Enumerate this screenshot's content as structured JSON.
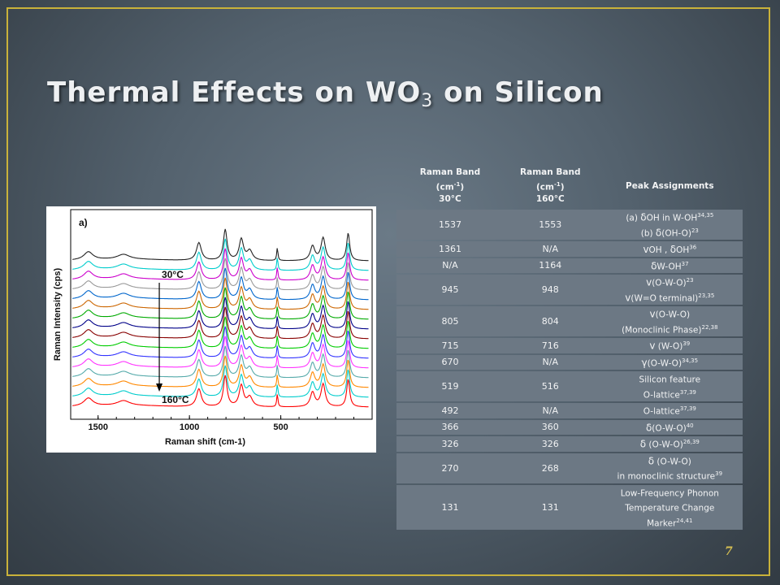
{
  "slide": {
    "title_main": "Thermal Effects on WO",
    "title_sub": "3",
    "title_tail": " on Silicon",
    "page_number": "7"
  },
  "table": {
    "headers": {
      "band_label": "Raman Band",
      "unit": "(cm",
      "unit_exp": "-1",
      "unit_close": ")",
      "col1_temp": "30°C",
      "col2_temp": "160°C",
      "col3": "Peak Assignments"
    },
    "rows": [
      {
        "c30": "1537",
        "c160": "1553",
        "lines": [
          [
            "(a) ",
            "δ",
            "OH in W-OH",
            "34,35"
          ],
          [
            "(b) ",
            "δ",
            "(OH-O)",
            "23"
          ]
        ]
      },
      {
        "c30": "1361",
        "c160": "N/A",
        "lines": [
          [
            "",
            "v",
            "OH , ",
            ""
          ],
          [
            "",
            "δ",
            "OH",
            "36"
          ]
        ],
        "inline": true
      },
      {
        "c30": "N/A",
        "c160": "1164",
        "lines": [
          [
            "",
            "δ",
            "W-OH",
            "37"
          ]
        ]
      },
      {
        "c30": "945",
        "c160": "948",
        "lines": [
          [
            "",
            "v",
            "(O-W-O)",
            "23"
          ],
          [
            "",
            "v",
            "(W=O terminal)",
            "23,35"
          ]
        ]
      },
      {
        "c30": "805",
        "c160": "804",
        "lines": [
          [
            "",
            "v",
            "(O-W-O)",
            ""
          ],
          [
            "",
            "",
            "(Monoclinic Phase)",
            "22,38"
          ]
        ]
      },
      {
        "c30": "715",
        "c160": "716",
        "lines": [
          [
            "",
            "v",
            " (W-O)",
            "39"
          ]
        ]
      },
      {
        "c30": "670",
        "c160": "N/A",
        "lines": [
          [
            "",
            "γ",
            "(O-W-O)",
            "34,35"
          ]
        ]
      },
      {
        "c30": "519",
        "c160": "516",
        "lines": [
          [
            "",
            "",
            "Silicon feature",
            ""
          ],
          [
            "",
            "",
            "O-lattice",
            "37,39"
          ]
        ]
      },
      {
        "c30": "492",
        "c160": "N/A",
        "lines": [
          [
            "",
            "",
            "O-lattice",
            "37,39"
          ]
        ]
      },
      {
        "c30": "366",
        "c160": "360",
        "lines": [
          [
            "",
            "δ",
            "(O-W-O)",
            "40"
          ]
        ]
      },
      {
        "c30": "326",
        "c160": "326",
        "lines": [
          [
            "",
            "δ",
            " (O-W-O)",
            "26,39"
          ]
        ]
      },
      {
        "c30": "270",
        "c160": "268",
        "lines": [
          [
            "",
            "δ",
            " (O-W-O)",
            ""
          ],
          [
            "",
            "",
            "in monoclinic structure",
            "39"
          ]
        ]
      },
      {
        "c30": "131",
        "c160": "131",
        "lines": [
          [
            "",
            "",
            "Low-Frequency Phonon",
            ""
          ],
          [
            "",
            "",
            "Temperature Change",
            ""
          ],
          [
            "",
            "",
            "Marker",
            "24,41"
          ]
        ]
      }
    ]
  },
  "chart_data": {
    "type": "line",
    "panel_label": "a)",
    "xlabel": "Raman shift (cm-1)",
    "ylabel": "Raman Intensity (cps)",
    "x_ticks": [
      "1500",
      "1000",
      "500"
    ],
    "xlim": [
      1650,
      0
    ],
    "annotations": {
      "top_temp": "30°C",
      "bottom_temp": "160°C"
    },
    "series": [
      {
        "color": "#222222",
        "values": []
      },
      {
        "color": "#00cccc",
        "values": []
      },
      {
        "color": "#cc00cc",
        "values": []
      },
      {
        "color": "#999999",
        "values": []
      },
      {
        "color": "#0066cc",
        "values": []
      },
      {
        "color": "#cc6600",
        "values": []
      },
      {
        "color": "#00aa00",
        "values": []
      },
      {
        "color": "#000088",
        "values": []
      },
      {
        "color": "#880000",
        "values": []
      },
      {
        "color": "#00cc00",
        "values": []
      },
      {
        "color": "#3333ff",
        "values": []
      },
      {
        "color": "#ff33ff",
        "values": []
      },
      {
        "color": "#55aaaa",
        "values": []
      },
      {
        "color": "#ff8800",
        "values": []
      },
      {
        "color": "#00cccc",
        "values": []
      },
      {
        "color": "#ff0000",
        "values": []
      }
    ],
    "peaks": [
      {
        "x": 1553,
        "height": 0.25,
        "width": 30
      },
      {
        "x": 1361,
        "height": 0.15,
        "width": 40
      },
      {
        "x": 948,
        "height": 0.55,
        "width": 16
      },
      {
        "x": 804,
        "height": 0.95,
        "width": 12
      },
      {
        "x": 716,
        "height": 0.65,
        "width": 14
      },
      {
        "x": 670,
        "height": 0.3,
        "width": 18
      },
      {
        "x": 519,
        "height": 0.4,
        "width": 4
      },
      {
        "x": 326,
        "height": 0.45,
        "width": 15
      },
      {
        "x": 268,
        "height": 0.7,
        "width": 14
      },
      {
        "x": 131,
        "height": 0.85,
        "width": 10
      }
    ]
  }
}
